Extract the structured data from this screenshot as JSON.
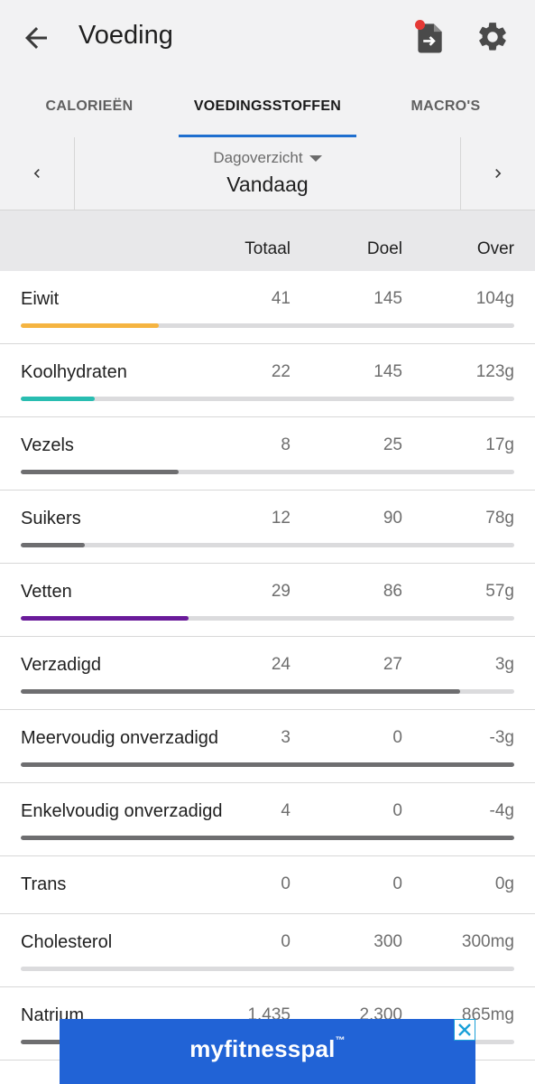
{
  "appbar": {
    "title": "Voeding"
  },
  "tabs": [
    {
      "label": "CALORIEËN"
    },
    {
      "label": "VOEDINGSSTOFFEN"
    },
    {
      "label": "MACRO'S"
    }
  ],
  "day": {
    "view_label": "Dagoverzicht",
    "date_label": "Vandaag"
  },
  "columns": {
    "total": "Totaal",
    "goal": "Doel",
    "over": "Over"
  },
  "nutrients": [
    {
      "name": "Eiwit",
      "total": "41",
      "goal": "145",
      "over": "104g",
      "progress": 0.28,
      "color": "#f5b441"
    },
    {
      "name": "Koolhydraten",
      "total": "22",
      "goal": "145",
      "over": "123g",
      "progress": 0.15,
      "color": "#29bdb1"
    },
    {
      "name": "Vezels",
      "total": "8",
      "goal": "25",
      "over": "17g",
      "progress": 0.32,
      "color": "#6e6e70"
    },
    {
      "name": "Suikers",
      "total": "12",
      "goal": "90",
      "over": "78g",
      "progress": 0.13,
      "color": "#6e6e70"
    },
    {
      "name": "Vetten",
      "total": "29",
      "goal": "86",
      "over": "57g",
      "progress": 0.34,
      "color": "#6a1b9a"
    },
    {
      "name": "Verzadigd",
      "total": "24",
      "goal": "27",
      "over": "3g",
      "progress": 0.89,
      "color": "#6e6e70"
    },
    {
      "name": "Meervoudig onverzadigd",
      "total": "3",
      "goal": "0",
      "over": "-3g",
      "progress": 1.0,
      "color": "#6e6e70"
    },
    {
      "name": "Enkelvoudig onverzadigd",
      "total": "4",
      "goal": "0",
      "over": "-4g",
      "progress": 1.0,
      "color": "#6e6e70"
    },
    {
      "name": "Trans",
      "total": "0",
      "goal": "0",
      "over": "0g",
      "progress": null,
      "color": "#6e6e70"
    },
    {
      "name": "Cholesterol",
      "total": "0",
      "goal": "300",
      "over": "300mg",
      "progress": 0.0,
      "color": "#6e6e70"
    },
    {
      "name": "Natrium",
      "total": "1.435",
      "goal": "2.300",
      "over": "865mg",
      "progress": 0.62,
      "color": "#6e6e70"
    }
  ],
  "ad": {
    "brand": "myfitnesspal",
    "trademark": "™",
    "close_icon": "close-icon"
  },
  "icons": {
    "back": "arrow-left-icon",
    "export": "export-document-icon",
    "settings": "gear-icon",
    "prev": "chevron-left-icon",
    "next": "chevron-right-icon"
  },
  "colors": {
    "accent": "#1f6fcf",
    "notification": "#e53935",
    "ad_background": "#2163d6"
  }
}
